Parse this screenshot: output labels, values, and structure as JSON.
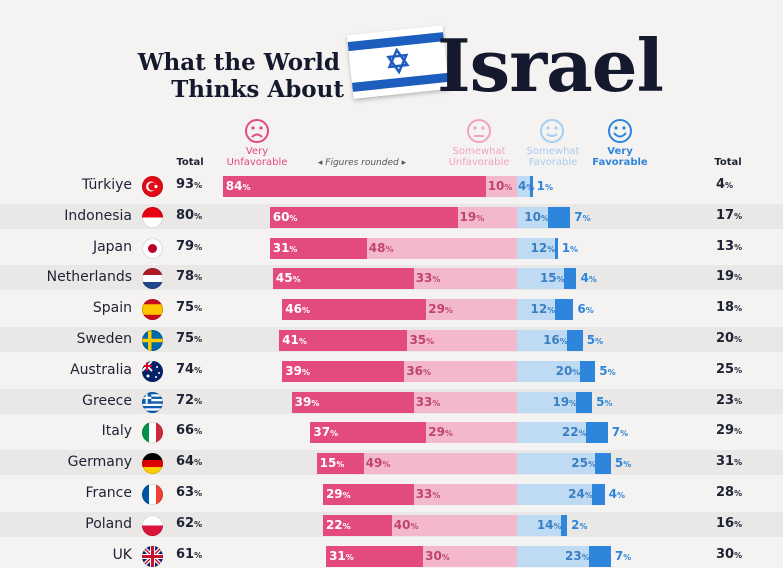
{
  "title": {
    "line1": "What the World",
    "line2": "Thinks About",
    "big": "Israel"
  },
  "headers": {
    "total_left": "Total",
    "very_unfavorable": [
      "Very",
      "Unfavorable"
    ],
    "figures_rounded": "◂ Figures rounded ▸",
    "somewhat_unfavorable": [
      "Somewhat",
      "Unfavorable"
    ],
    "somewhat_favorable": [
      "Somewhat",
      "Favorable"
    ],
    "very_favorable": [
      "Very",
      "Favorable"
    ],
    "total_right": "Total"
  },
  "colors": {
    "very_unfavorable": "#e34a7f",
    "somewhat_unfavorable": "#f4b8cd",
    "somewhat_favorable": "#bfdbf4",
    "very_favorable": "#2e86dc"
  },
  "chart_data": {
    "type": "bar",
    "subtype": "diverging-stacked-horizontal",
    "categories": [
      "Türkiye",
      "Indonesia",
      "Japan",
      "Netherlands",
      "Spain",
      "Sweden",
      "Australia",
      "Greece",
      "Italy",
      "Germany",
      "France",
      "Poland",
      "UK"
    ],
    "flags": [
      "turkey",
      "indonesia",
      "japan",
      "netherlands",
      "spain",
      "sweden",
      "australia",
      "greece",
      "italy",
      "germany",
      "france",
      "poland",
      "uk"
    ],
    "series": [
      {
        "name": "Very Unfavorable",
        "values": [
          84,
          60,
          31,
          45,
          46,
          41,
          39,
          39,
          37,
          15,
          29,
          22,
          31
        ]
      },
      {
        "name": "Somewhat Unfavorable",
        "values": [
          10,
          19,
          48,
          33,
          29,
          35,
          36,
          33,
          29,
          49,
          33,
          40,
          30
        ]
      },
      {
        "name": "Somewhat Favorable",
        "values": [
          4,
          10,
          12,
          15,
          12,
          16,
          20,
          19,
          22,
          25,
          24,
          14,
          23
        ]
      },
      {
        "name": "Very Favorable",
        "values": [
          1,
          7,
          1,
          4,
          6,
          5,
          5,
          5,
          7,
          5,
          4,
          2,
          7
        ]
      }
    ],
    "total_unfavorable": [
      93,
      80,
      79,
      78,
      75,
      75,
      74,
      72,
      66,
      64,
      63,
      62,
      61
    ],
    "total_favorable": [
      4,
      17,
      13,
      19,
      18,
      20,
      25,
      23,
      29,
      31,
      28,
      16,
      30
    ]
  }
}
